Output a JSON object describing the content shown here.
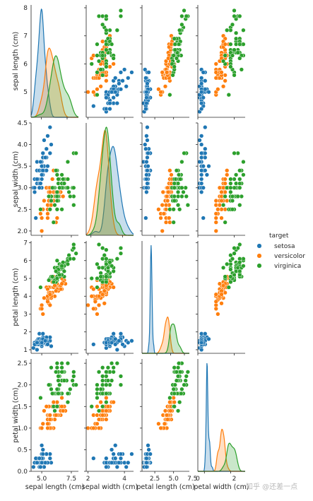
{
  "chart_data": {
    "type": "scatter",
    "kind": "pairplot",
    "diagonal": "kde",
    "variables": [
      "sepal length (cm)",
      "sepal width (cm)",
      "petal length (cm)",
      "petal width (cm)"
    ],
    "axes": [
      {
        "label": "sepal length (cm)",
        "lim": [
          4.1,
          8.1
        ],
        "ticks": [
          5,
          6,
          7,
          8
        ],
        "xticks": [
          5.0,
          7.5
        ],
        "xtick_labels": [
          "5.0",
          "7.5"
        ]
      },
      {
        "label": "sepal width (cm)",
        "lim": [
          1.9,
          4.5
        ],
        "ticks": [
          2.0,
          2.5,
          3.0,
          3.5,
          4.0,
          4.5
        ],
        "tick_labels": [
          "2.0",
          "2.5",
          "3.0",
          "3.5",
          "4.0",
          "4.5"
        ],
        "xticks": [
          2,
          4
        ],
        "xtick_labels": [
          "2",
          "4"
        ]
      },
      {
        "label": "petal length (cm)",
        "lim": [
          0.8,
          7.1
        ],
        "ticks": [
          1,
          2,
          3,
          4,
          5,
          6,
          7
        ],
        "xticks": [
          2.5,
          5.0,
          7.5
        ],
        "xtick_labels": [
          "2.5",
          "5.0",
          "7.5"
        ]
      },
      {
        "label": "petal width (cm)",
        "lim": [
          0.0,
          2.6
        ],
        "ticks": [
          0.0,
          0.5,
          1.0,
          1.5,
          2.0,
          2.5
        ],
        "tick_labels": [
          "0.0",
          "0.5",
          "1.0",
          "1.5",
          "2.0",
          "2.5"
        ],
        "xticks": [
          0,
          2
        ],
        "xtick_labels": [
          "0",
          "2"
        ]
      }
    ],
    "diag_xlim": [
      [
        4.0,
        8.6
      ],
      [
        1.7,
        4.7
      ],
      [
        -0.2,
        8.4
      ],
      [
        -0.5,
        3.1
      ]
    ],
    "legend": {
      "title": "target",
      "position": "right"
    },
    "series": [
      {
        "name": "setosa",
        "color": "#1f77b4",
        "points": [
          [
            5.1,
            3.5,
            1.4,
            0.2
          ],
          [
            4.9,
            3.0,
            1.4,
            0.2
          ],
          [
            4.7,
            3.2,
            1.3,
            0.2
          ],
          [
            4.6,
            3.1,
            1.5,
            0.2
          ],
          [
            5.0,
            3.6,
            1.4,
            0.2
          ],
          [
            5.4,
            3.9,
            1.7,
            0.4
          ],
          [
            4.6,
            3.4,
            1.4,
            0.3
          ],
          [
            5.0,
            3.4,
            1.5,
            0.2
          ],
          [
            4.4,
            2.9,
            1.4,
            0.2
          ],
          [
            4.9,
            3.1,
            1.5,
            0.1
          ],
          [
            5.4,
            3.7,
            1.5,
            0.2
          ],
          [
            4.8,
            3.4,
            1.6,
            0.2
          ],
          [
            4.8,
            3.0,
            1.4,
            0.1
          ],
          [
            4.3,
            3.0,
            1.1,
            0.1
          ],
          [
            5.8,
            4.0,
            1.2,
            0.2
          ],
          [
            5.7,
            4.4,
            1.5,
            0.4
          ],
          [
            5.4,
            3.9,
            1.3,
            0.4
          ],
          [
            5.1,
            3.5,
            1.4,
            0.3
          ],
          [
            5.7,
            3.8,
            1.7,
            0.3
          ],
          [
            5.1,
            3.8,
            1.5,
            0.3
          ],
          [
            5.4,
            3.4,
            1.7,
            0.2
          ],
          [
            5.1,
            3.7,
            1.5,
            0.4
          ],
          [
            4.6,
            3.6,
            1.0,
            0.2
          ],
          [
            5.1,
            3.3,
            1.7,
            0.5
          ],
          [
            4.8,
            3.4,
            1.9,
            0.2
          ],
          [
            5.0,
            3.0,
            1.6,
            0.2
          ],
          [
            5.0,
            3.4,
            1.6,
            0.4
          ],
          [
            5.2,
            3.5,
            1.5,
            0.2
          ],
          [
            5.2,
            3.4,
            1.4,
            0.2
          ],
          [
            4.7,
            3.2,
            1.6,
            0.2
          ],
          [
            4.8,
            3.1,
            1.6,
            0.2
          ],
          [
            5.4,
            3.4,
            1.5,
            0.4
          ],
          [
            5.2,
            4.1,
            1.5,
            0.1
          ],
          [
            5.5,
            4.2,
            1.4,
            0.2
          ],
          [
            4.9,
            3.1,
            1.5,
            0.2
          ],
          [
            5.0,
            3.2,
            1.2,
            0.2
          ],
          [
            5.5,
            3.5,
            1.3,
            0.2
          ],
          [
            4.9,
            3.6,
            1.4,
            0.1
          ],
          [
            4.4,
            3.0,
            1.3,
            0.2
          ],
          [
            5.1,
            3.4,
            1.5,
            0.2
          ],
          [
            5.0,
            3.5,
            1.3,
            0.3
          ],
          [
            4.5,
            2.3,
            1.3,
            0.3
          ],
          [
            4.4,
            3.2,
            1.3,
            0.2
          ],
          [
            5.0,
            3.5,
            1.6,
            0.6
          ],
          [
            5.1,
            3.8,
            1.9,
            0.4
          ],
          [
            4.8,
            3.0,
            1.4,
            0.3
          ],
          [
            5.1,
            3.8,
            1.6,
            0.2
          ],
          [
            4.6,
            3.2,
            1.4,
            0.2
          ],
          [
            5.3,
            3.7,
            1.5,
            0.2
          ],
          [
            5.0,
            3.3,
            1.4,
            0.2
          ]
        ]
      },
      {
        "name": "versicolor",
        "color": "#ff7f0e",
        "points": [
          [
            7.0,
            3.2,
            4.7,
            1.4
          ],
          [
            6.4,
            3.2,
            4.5,
            1.5
          ],
          [
            6.9,
            3.1,
            4.9,
            1.5
          ],
          [
            5.5,
            2.3,
            4.0,
            1.3
          ],
          [
            6.5,
            2.8,
            4.6,
            1.5
          ],
          [
            5.7,
            2.8,
            4.5,
            1.3
          ],
          [
            6.3,
            3.3,
            4.7,
            1.6
          ],
          [
            4.9,
            2.4,
            3.3,
            1.0
          ],
          [
            6.6,
            2.9,
            4.6,
            1.3
          ],
          [
            5.2,
            2.7,
            3.9,
            1.4
          ],
          [
            5.0,
            2.0,
            3.5,
            1.0
          ],
          [
            5.9,
            3.0,
            4.2,
            1.5
          ],
          [
            6.0,
            2.2,
            4.0,
            1.0
          ],
          [
            6.1,
            2.9,
            4.7,
            1.4
          ],
          [
            5.6,
            2.9,
            3.6,
            1.3
          ],
          [
            6.7,
            3.1,
            4.4,
            1.4
          ],
          [
            5.6,
            3.0,
            4.5,
            1.5
          ],
          [
            5.8,
            2.7,
            4.1,
            1.0
          ],
          [
            6.2,
            2.2,
            4.5,
            1.5
          ],
          [
            5.6,
            2.5,
            3.9,
            1.1
          ],
          [
            5.9,
            3.2,
            4.8,
            1.8
          ],
          [
            6.1,
            2.8,
            4.0,
            1.3
          ],
          [
            6.3,
            2.5,
            4.9,
            1.5
          ],
          [
            6.1,
            2.8,
            4.7,
            1.2
          ],
          [
            6.4,
            2.9,
            4.3,
            1.3
          ],
          [
            6.6,
            3.0,
            4.4,
            1.4
          ],
          [
            6.8,
            2.8,
            4.8,
            1.4
          ],
          [
            6.7,
            3.0,
            5.0,
            1.7
          ],
          [
            6.0,
            2.9,
            4.5,
            1.5
          ],
          [
            5.7,
            2.6,
            3.5,
            1.0
          ],
          [
            5.5,
            2.4,
            3.8,
            1.1
          ],
          [
            5.5,
            2.4,
            3.7,
            1.0
          ],
          [
            5.8,
            2.7,
            3.9,
            1.2
          ],
          [
            6.0,
            2.7,
            5.1,
            1.6
          ],
          [
            5.4,
            3.0,
            4.5,
            1.5
          ],
          [
            6.0,
            3.4,
            4.5,
            1.6
          ],
          [
            6.7,
            3.1,
            4.7,
            1.5
          ],
          [
            6.3,
            2.3,
            4.4,
            1.3
          ],
          [
            5.6,
            3.0,
            4.1,
            1.3
          ],
          [
            5.5,
            2.5,
            4.0,
            1.3
          ],
          [
            5.5,
            2.6,
            4.4,
            1.2
          ],
          [
            6.1,
            3.0,
            4.6,
            1.4
          ],
          [
            5.8,
            2.6,
            4.0,
            1.2
          ],
          [
            5.0,
            2.3,
            3.3,
            1.0
          ],
          [
            5.6,
            2.7,
            4.2,
            1.3
          ],
          [
            5.7,
            3.0,
            4.2,
            1.2
          ],
          [
            5.7,
            2.9,
            4.2,
            1.3
          ],
          [
            6.2,
            2.9,
            4.3,
            1.3
          ],
          [
            5.1,
            2.5,
            3.0,
            1.1
          ],
          [
            5.7,
            2.8,
            4.1,
            1.3
          ]
        ]
      },
      {
        "name": "virginica",
        "color": "#2ca02c",
        "points": [
          [
            6.3,
            3.3,
            6.0,
            2.5
          ],
          [
            5.8,
            2.7,
            5.1,
            1.9
          ],
          [
            7.1,
            3.0,
            5.9,
            2.1
          ],
          [
            6.3,
            2.9,
            5.6,
            1.8
          ],
          [
            6.5,
            3.0,
            5.8,
            2.2
          ],
          [
            7.6,
            3.0,
            6.6,
            2.1
          ],
          [
            4.9,
            2.5,
            4.5,
            1.7
          ],
          [
            7.3,
            2.9,
            6.3,
            1.8
          ],
          [
            6.7,
            2.5,
            5.8,
            1.8
          ],
          [
            7.2,
            3.6,
            6.1,
            2.5
          ],
          [
            6.5,
            3.2,
            5.1,
            2.0
          ],
          [
            6.4,
            2.7,
            5.3,
            1.9
          ],
          [
            6.8,
            3.0,
            5.5,
            2.1
          ],
          [
            5.7,
            2.5,
            5.0,
            2.0
          ],
          [
            5.8,
            2.8,
            5.1,
            2.4
          ],
          [
            6.4,
            3.2,
            5.3,
            2.3
          ],
          [
            6.5,
            3.0,
            5.5,
            1.8
          ],
          [
            7.7,
            3.8,
            6.7,
            2.2
          ],
          [
            7.7,
            2.6,
            6.9,
            2.3
          ],
          [
            6.0,
            2.2,
            5.0,
            1.5
          ],
          [
            6.9,
            3.2,
            5.7,
            2.3
          ],
          [
            5.6,
            2.8,
            4.9,
            2.0
          ],
          [
            7.7,
            2.8,
            6.7,
            2.0
          ],
          [
            6.3,
            2.7,
            4.9,
            1.8
          ],
          [
            6.7,
            3.3,
            5.7,
            2.1
          ],
          [
            7.2,
            3.2,
            6.0,
            1.8
          ],
          [
            6.2,
            2.8,
            4.8,
            1.8
          ],
          [
            6.1,
            3.0,
            4.9,
            1.8
          ],
          [
            6.4,
            2.8,
            5.6,
            2.1
          ],
          [
            7.2,
            3.0,
            5.8,
            1.6
          ],
          [
            7.4,
            2.8,
            6.1,
            1.9
          ],
          [
            7.9,
            3.8,
            6.4,
            2.0
          ],
          [
            6.4,
            2.8,
            5.6,
            2.2
          ],
          [
            6.3,
            2.8,
            5.1,
            1.5
          ],
          [
            6.1,
            2.6,
            5.6,
            1.4
          ],
          [
            7.7,
            3.0,
            6.1,
            2.3
          ],
          [
            6.3,
            3.4,
            5.6,
            2.4
          ],
          [
            6.4,
            3.1,
            5.5,
            1.8
          ],
          [
            6.0,
            3.0,
            4.8,
            1.8
          ],
          [
            6.9,
            3.1,
            5.4,
            2.1
          ],
          [
            6.7,
            3.1,
            5.6,
            2.4
          ],
          [
            6.9,
            3.1,
            5.1,
            2.3
          ],
          [
            5.8,
            2.7,
            5.1,
            1.9
          ],
          [
            6.8,
            3.2,
            5.9,
            2.3
          ],
          [
            6.7,
            3.3,
            5.7,
            2.5
          ],
          [
            6.7,
            3.0,
            5.2,
            2.3
          ],
          [
            6.3,
            2.5,
            5.0,
            1.9
          ],
          [
            6.5,
            3.0,
            5.2,
            2.0
          ],
          [
            6.2,
            3.4,
            5.4,
            2.3
          ],
          [
            5.9,
            3.0,
            5.1,
            1.8
          ]
        ]
      }
    ]
  },
  "watermark": "知乎 @还差一点"
}
